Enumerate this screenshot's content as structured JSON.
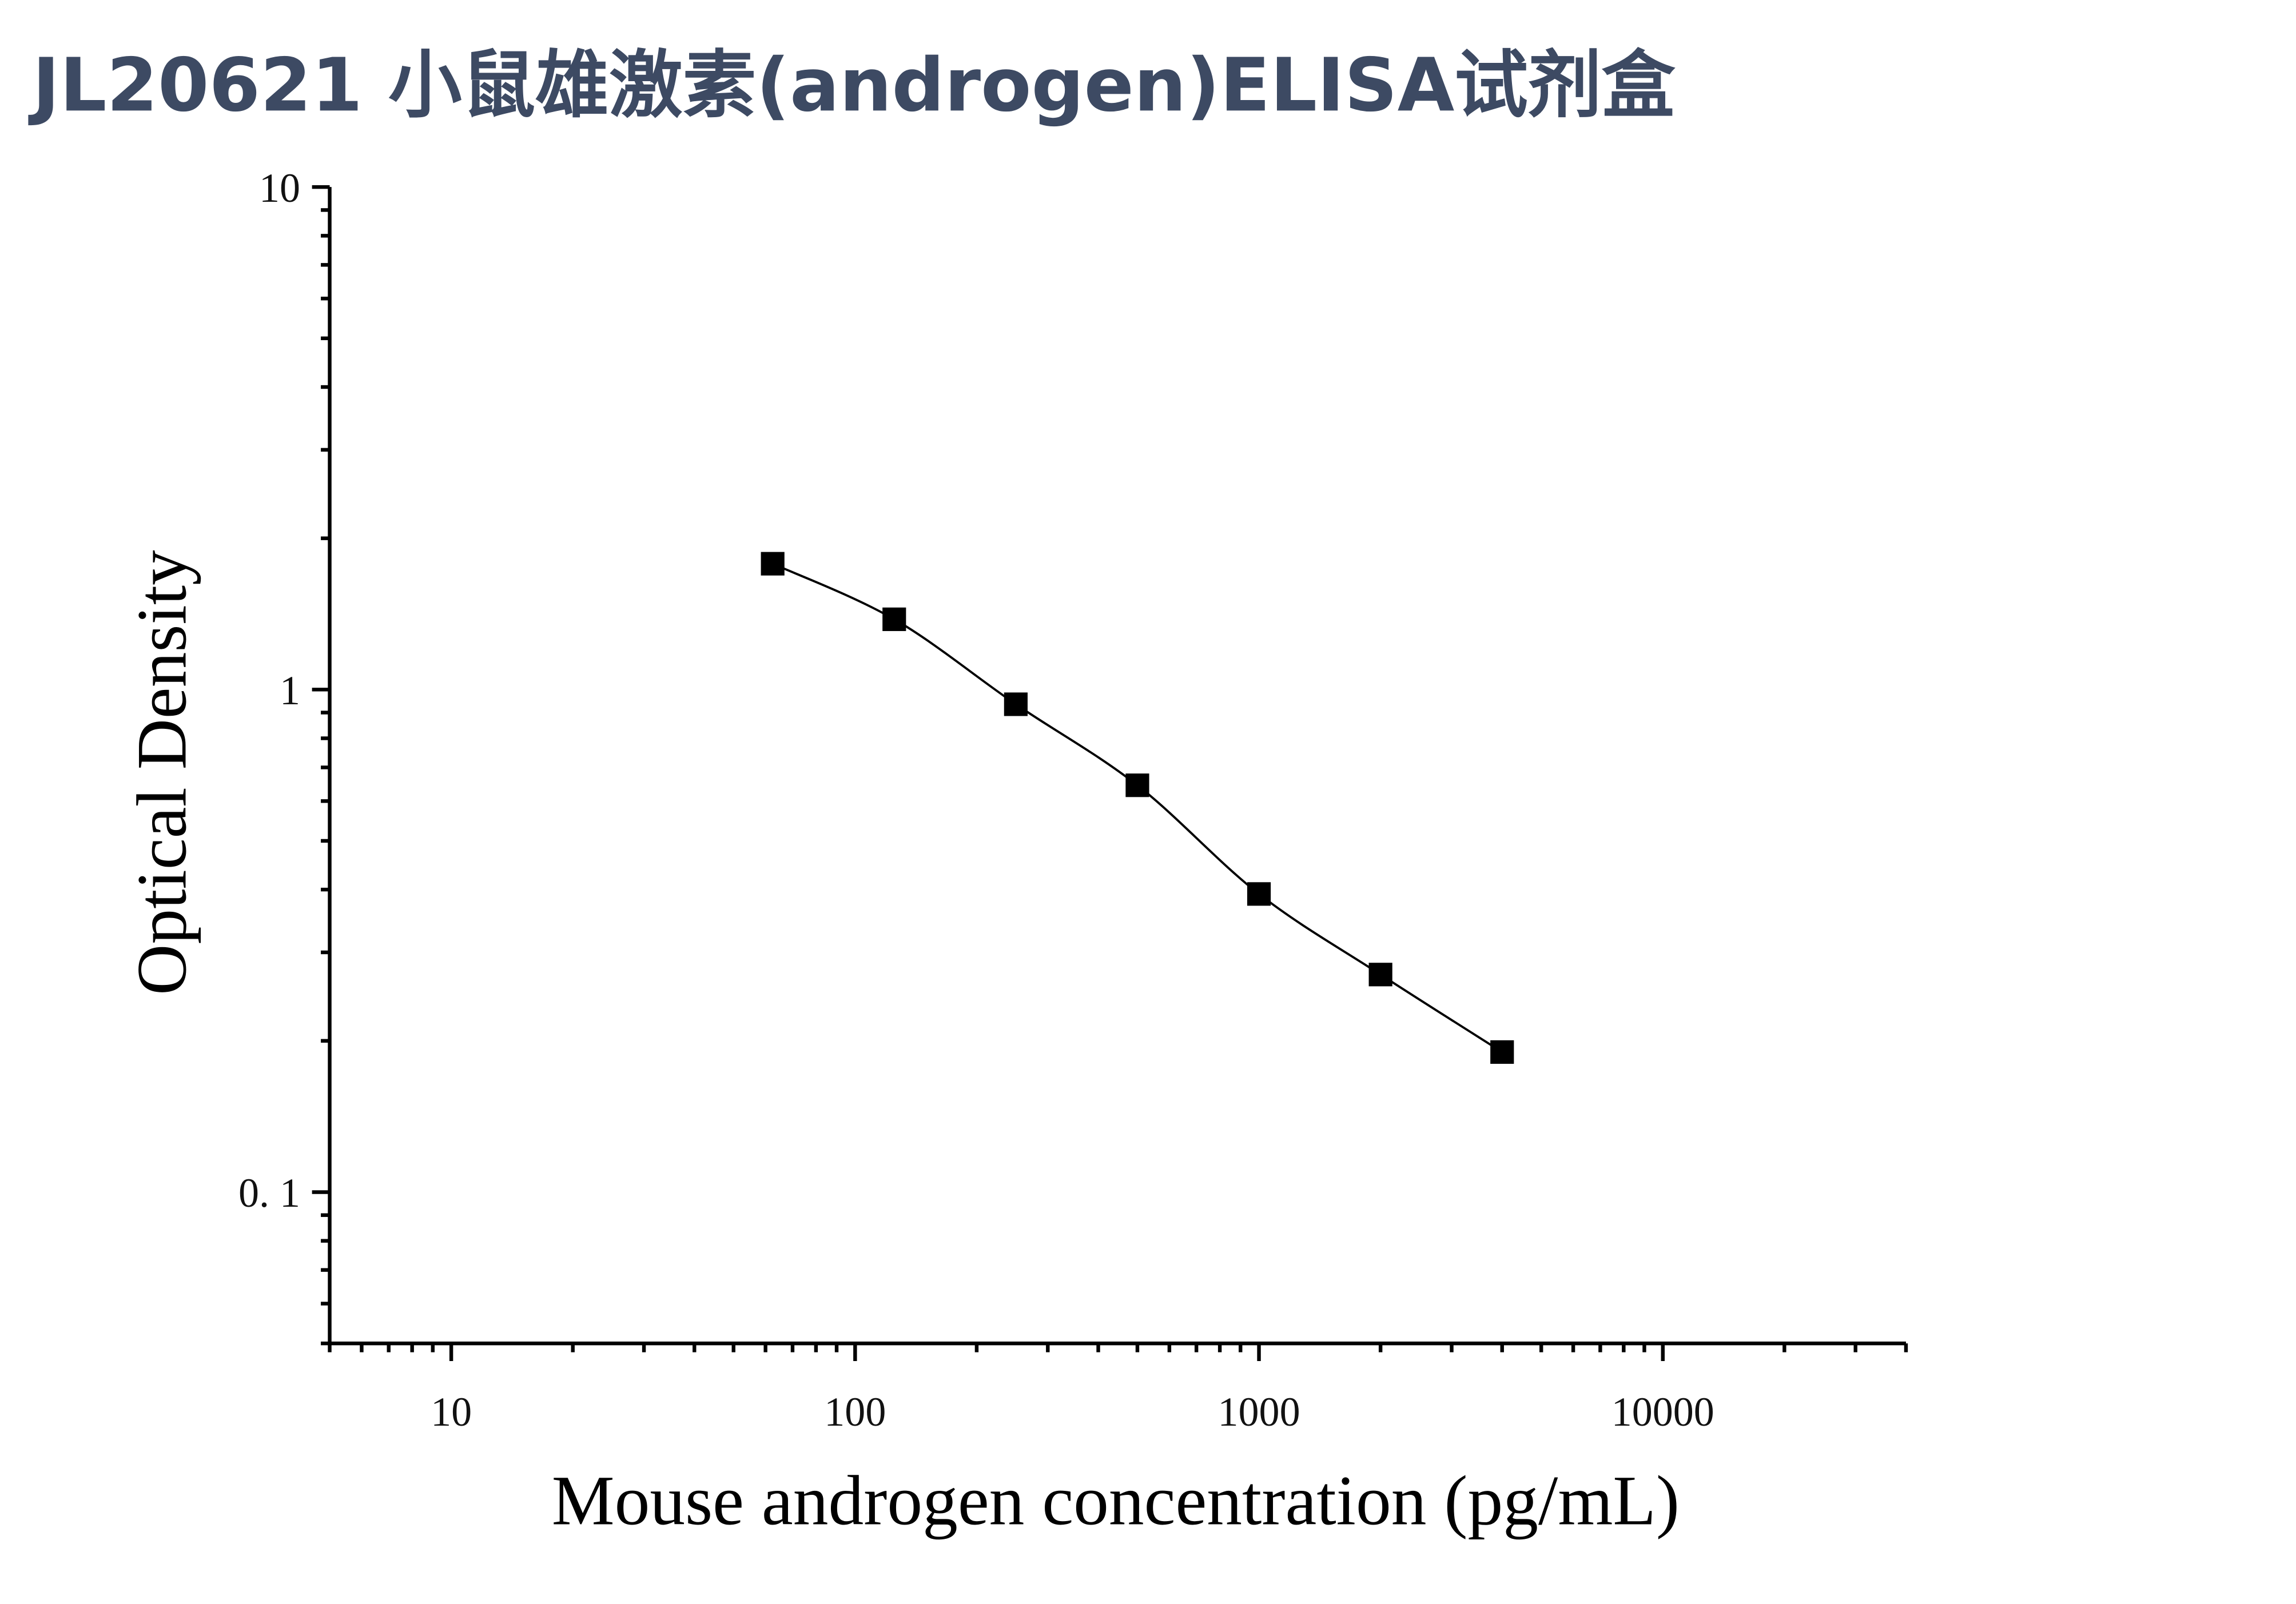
{
  "chart_data": {
    "type": "scatter",
    "title": "JL20621 小鼠雄激素(androgen)ELISA试剂盒",
    "xlabel": "Mouse androgen concentration (pg/mL)",
    "ylabel": "Optical Density",
    "x": [
      62.5,
      125,
      250,
      500,
      1000,
      2000,
      4000
    ],
    "values": [
      1.78,
      1.38,
      0.935,
      0.645,
      0.392,
      0.271,
      0.19
    ],
    "color": "#000000",
    "fit_line": true,
    "xscale": "log",
    "yscale": "log",
    "xlim": [
      5,
      40000
    ],
    "ylim": [
      0.05,
      10
    ],
    "xticks": [
      10,
      100,
      1000,
      10000
    ],
    "yticks": [
      {
        "value": 0.1,
        "label": "0. 1"
      },
      1,
      10
    ],
    "grid": false
  }
}
